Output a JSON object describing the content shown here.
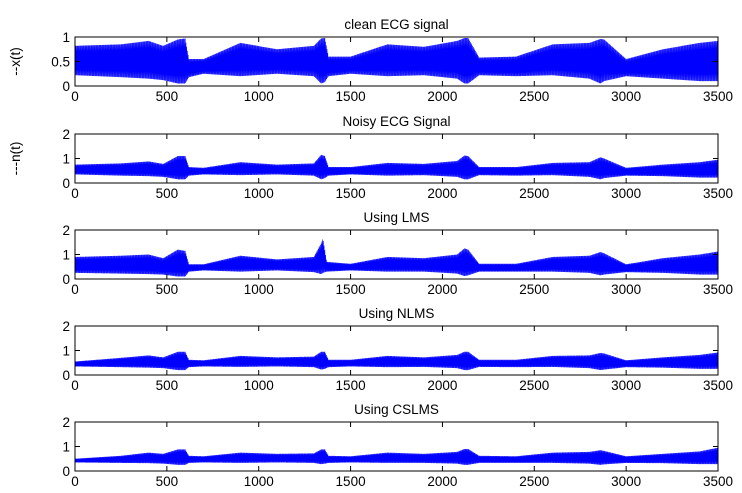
{
  "chart_data": [
    {
      "type": "line",
      "title": "clean ECG signal",
      "ylabel": "--x(t)",
      "xlabel": "",
      "xlim": [
        0,
        3500
      ],
      "ylim": [
        0,
        1
      ],
      "xticks": [
        0,
        500,
        1000,
        1500,
        2000,
        2500,
        3000,
        3500
      ],
      "yticks": [
        0,
        0.5,
        1
      ],
      "ytick_labels": [
        "0",
        "0.5",
        "1"
      ],
      "color": "#0000ff",
      "envelope": {
        "x": [
          0,
          250,
          400,
          480,
          560,
          600,
          620,
          700,
          900,
          1100,
          1300,
          1340,
          1360,
          1380,
          1500,
          1700,
          1900,
          2080,
          2120,
          2140,
          2200,
          2400,
          2600,
          2800,
          2860,
          2880,
          3000,
          3200,
          3400,
          3500
        ],
        "low": [
          0.22,
          0.18,
          0.15,
          0.12,
          0.05,
          0.05,
          0.18,
          0.25,
          0.2,
          0.25,
          0.2,
          0.05,
          0.08,
          0.2,
          0.25,
          0.2,
          0.22,
          0.15,
          0.05,
          0.05,
          0.22,
          0.2,
          0.22,
          0.15,
          0.05,
          0.1,
          0.2,
          0.15,
          0.1,
          0.1
        ],
        "high": [
          0.82,
          0.85,
          0.92,
          0.82,
          0.95,
          0.97,
          0.55,
          0.55,
          0.88,
          0.75,
          0.82,
          0.97,
          0.98,
          0.6,
          0.6,
          0.85,
          0.8,
          0.92,
          0.98,
          0.98,
          0.58,
          0.6,
          0.85,
          0.88,
          0.96,
          0.95,
          0.55,
          0.75,
          0.88,
          0.92
        ]
      }
    },
    {
      "type": "line",
      "title": "Noisy ECG Signal",
      "ylabel": "---n(t)",
      "xlabel": "",
      "xlim": [
        0,
        3500
      ],
      "ylim": [
        0,
        2
      ],
      "xticks": [
        0,
        500,
        1000,
        1500,
        2000,
        2500,
        3000,
        3500
      ],
      "yticks": [
        0,
        1,
        2
      ],
      "ytick_labels": [
        "0",
        "1",
        "2"
      ],
      "color": "#0000ff",
      "envelope": {
        "x": [
          0,
          250,
          400,
          480,
          560,
          600,
          620,
          700,
          900,
          1100,
          1300,
          1340,
          1360,
          1380,
          1500,
          1700,
          1900,
          2080,
          2120,
          2140,
          2200,
          2400,
          2600,
          2800,
          2860,
          2880,
          3000,
          3200,
          3400,
          3500
        ],
        "low": [
          0.35,
          0.3,
          0.28,
          0.25,
          0.15,
          0.15,
          0.3,
          0.35,
          0.32,
          0.35,
          0.3,
          0.15,
          0.2,
          0.3,
          0.35,
          0.3,
          0.32,
          0.25,
          0.15,
          0.15,
          0.32,
          0.3,
          0.32,
          0.25,
          0.15,
          0.2,
          0.3,
          0.28,
          0.22,
          0.22
        ],
        "high": [
          0.75,
          0.8,
          0.88,
          0.78,
          1.1,
          1.1,
          0.65,
          0.62,
          0.85,
          0.75,
          0.8,
          1.15,
          1.1,
          0.65,
          0.65,
          0.82,
          0.78,
          0.9,
          1.12,
          1.1,
          0.65,
          0.65,
          0.82,
          0.85,
          1.05,
          1.0,
          0.62,
          0.75,
          0.85,
          0.95
        ]
      }
    },
    {
      "type": "line",
      "title": "Using LMS",
      "ylabel": "",
      "xlabel": "",
      "xlim": [
        0,
        3500
      ],
      "ylim": [
        0,
        2
      ],
      "xticks": [
        0,
        500,
        1000,
        1500,
        2000,
        2500,
        3000,
        3500
      ],
      "yticks": [
        0,
        1,
        2
      ],
      "ytick_labels": [
        "0",
        "1",
        "2"
      ],
      "color": "#0000ff",
      "envelope": {
        "x": [
          0,
          250,
          400,
          480,
          560,
          600,
          620,
          700,
          900,
          1100,
          1300,
          1340,
          1350,
          1370,
          1500,
          1700,
          1900,
          2080,
          2120,
          2140,
          2200,
          2400,
          2600,
          2800,
          2860,
          2880,
          3000,
          3200,
          3400,
          3500
        ],
        "low": [
          0.25,
          0.22,
          0.2,
          0.18,
          0.1,
          0.1,
          0.3,
          0.35,
          0.3,
          0.35,
          0.28,
          0.2,
          0.25,
          0.3,
          0.35,
          0.3,
          0.3,
          0.22,
          0.12,
          0.15,
          0.3,
          0.3,
          0.3,
          0.25,
          0.15,
          0.18,
          0.28,
          0.25,
          0.18,
          0.18
        ],
        "high": [
          0.9,
          0.95,
          1.0,
          0.85,
          1.2,
          1.15,
          0.6,
          0.6,
          0.95,
          0.8,
          0.9,
          1.45,
          1.65,
          0.7,
          0.62,
          0.9,
          0.85,
          1.0,
          1.25,
          1.2,
          0.62,
          0.62,
          0.9,
          0.95,
          1.1,
          1.05,
          0.6,
          0.85,
          1.0,
          1.12
        ]
      }
    },
    {
      "type": "line",
      "title": "Using NLMS",
      "ylabel": "",
      "xlabel": "",
      "xlim": [
        0,
        3500
      ],
      "ylim": [
        0,
        2
      ],
      "xticks": [
        0,
        500,
        1000,
        1500,
        2000,
        2500,
        3000,
        3500
      ],
      "yticks": [
        0,
        1,
        2
      ],
      "ytick_labels": [
        "0",
        "1",
        "2"
      ],
      "color": "#0000ff",
      "envelope": {
        "x": [
          0,
          250,
          400,
          480,
          560,
          600,
          620,
          700,
          900,
          1100,
          1300,
          1340,
          1360,
          1380,
          1500,
          1700,
          1900,
          2080,
          2120,
          2140,
          2200,
          2400,
          2600,
          2800,
          2860,
          2880,
          3000,
          3200,
          3400,
          3500
        ],
        "low": [
          0.35,
          0.32,
          0.3,
          0.28,
          0.2,
          0.2,
          0.32,
          0.35,
          0.33,
          0.35,
          0.32,
          0.22,
          0.25,
          0.32,
          0.35,
          0.32,
          0.33,
          0.28,
          0.2,
          0.2,
          0.33,
          0.32,
          0.33,
          0.28,
          0.2,
          0.22,
          0.32,
          0.3,
          0.25,
          0.25
        ],
        "high": [
          0.55,
          0.7,
          0.8,
          0.72,
          0.95,
          0.95,
          0.62,
          0.6,
          0.78,
          0.72,
          0.75,
          0.95,
          0.95,
          0.62,
          0.62,
          0.78,
          0.72,
          0.82,
          0.95,
          0.95,
          0.62,
          0.62,
          0.78,
          0.8,
          0.9,
          0.88,
          0.6,
          0.72,
          0.82,
          0.92
        ]
      }
    },
    {
      "type": "line",
      "title": "Using CSLMS",
      "ylabel": "",
      "xlabel": "",
      "xlim": [
        0,
        3500
      ],
      "ylim": [
        0,
        2
      ],
      "xticks": [
        0,
        500,
        1000,
        1500,
        2000,
        2500,
        3000,
        3500
      ],
      "yticks": [
        0,
        1,
        2
      ],
      "ytick_labels": [
        "0",
        "1",
        "2"
      ],
      "color": "#0000ff",
      "envelope": {
        "x": [
          0,
          250,
          400,
          480,
          560,
          600,
          620,
          700,
          900,
          1100,
          1300,
          1340,
          1360,
          1380,
          1500,
          1700,
          1900,
          2080,
          2120,
          2140,
          2200,
          2400,
          2600,
          2800,
          2860,
          2880,
          3000,
          3200,
          3400,
          3500
        ],
        "low": [
          0.35,
          0.33,
          0.32,
          0.3,
          0.25,
          0.25,
          0.33,
          0.35,
          0.33,
          0.35,
          0.33,
          0.28,
          0.3,
          0.33,
          0.35,
          0.33,
          0.33,
          0.3,
          0.25,
          0.25,
          0.33,
          0.33,
          0.33,
          0.3,
          0.25,
          0.27,
          0.33,
          0.32,
          0.28,
          0.28
        ],
        "high": [
          0.5,
          0.62,
          0.75,
          0.7,
          0.88,
          0.88,
          0.62,
          0.6,
          0.75,
          0.7,
          0.72,
          0.88,
          0.88,
          0.62,
          0.6,
          0.75,
          0.7,
          0.78,
          0.9,
          0.9,
          0.62,
          0.6,
          0.75,
          0.78,
          0.85,
          0.82,
          0.6,
          0.7,
          0.8,
          0.95
        ]
      }
    }
  ]
}
